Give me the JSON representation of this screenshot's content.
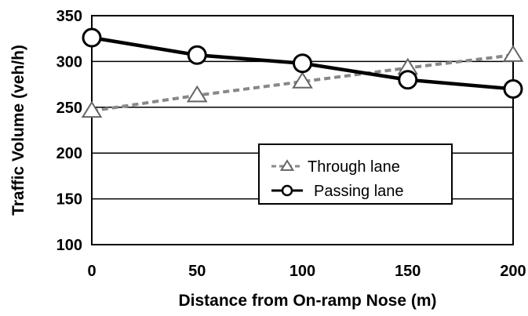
{
  "chart_data": {
    "type": "line",
    "xlabel": "Distance from On-ramp Nose (m)",
    "ylabel": "Traffic Volume (veh/h)",
    "x": [
      0,
      50,
      100,
      150,
      200
    ],
    "xlim": [
      0,
      200
    ],
    "ylim": [
      100,
      350
    ],
    "xticks": [
      "0",
      "50",
      "100",
      "150",
      "200"
    ],
    "yticks": [
      "100",
      "150",
      "200",
      "250",
      "300",
      "350"
    ],
    "grid": "horizontal",
    "legend_position": "center-right",
    "series": [
      {
        "name": "Through lane",
        "values": [
          246,
          263,
          278,
          293,
          307
        ],
        "marker": "triangle",
        "line_style": "dashed",
        "color": "#888888"
      },
      {
        "name": "Passing lane",
        "values": [
          326,
          307,
          298,
          280,
          270
        ],
        "marker": "circle",
        "line_style": "solid",
        "color": "#000000"
      }
    ]
  }
}
